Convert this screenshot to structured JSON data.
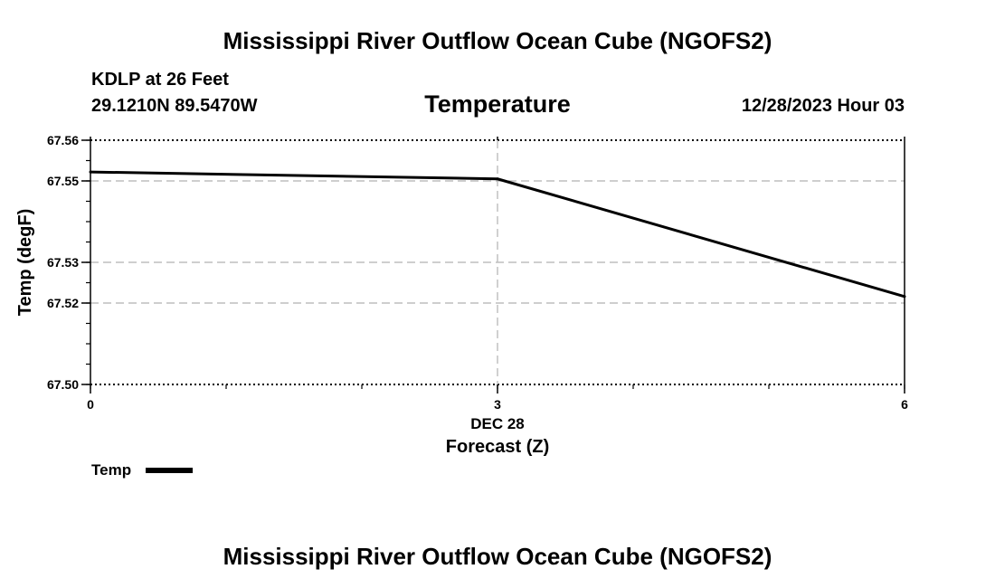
{
  "header": {
    "title": "Mississippi River Outflow Ocean Cube (NGOFS2)",
    "station": "KDLP at 26 Feet",
    "coords": "29.1210N  89.5470W",
    "subtitle": "Temperature",
    "datetime": "12/28/2023 Hour 03"
  },
  "footer": {
    "title": "Mississippi River Outflow Ocean Cube (NGOFS2)"
  },
  "legend": {
    "label": "Temp"
  },
  "chart_data": {
    "type": "line",
    "title": "Temperature",
    "xlabel": "Forecast (Z)",
    "xlabel_sub": "DEC 28",
    "ylabel": "Temp (degF)",
    "xlim": [
      0,
      6
    ],
    "ylim": [
      67.5,
      67.56
    ],
    "xticks": [
      0,
      3,
      6
    ],
    "xtick_labels": [
      "0",
      "3",
      "6"
    ],
    "yticks": [
      67.5,
      67.52,
      67.53,
      67.55,
      67.56
    ],
    "ytick_labels": [
      "67.50",
      "67.52",
      "67.53",
      "67.55",
      "67.56"
    ],
    "grid": true,
    "series": [
      {
        "name": "Temp",
        "x": [
          0,
          3,
          6
        ],
        "values": [
          67.5522,
          67.5505,
          67.5216
        ],
        "color": "#000000"
      }
    ]
  }
}
